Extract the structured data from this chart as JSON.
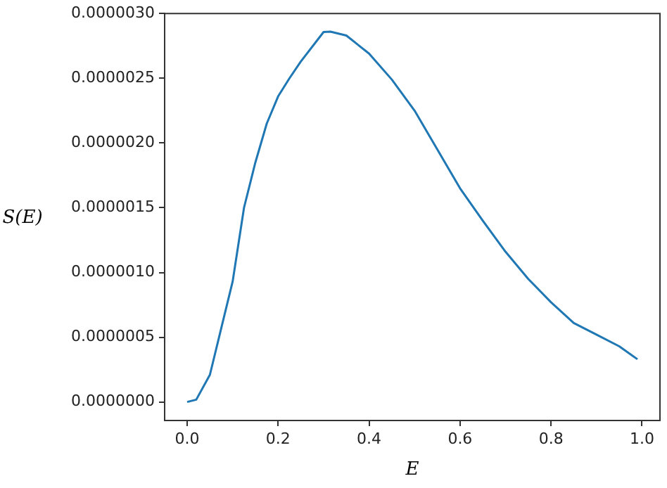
{
  "chart_data": {
    "type": "line",
    "xlabel": "E",
    "ylabel": "S(E)",
    "x": [
      0,
      0.02,
      0.05,
      0.075,
      0.1,
      0.125,
      0.15,
      0.175,
      0.2,
      0.225,
      0.25,
      0.3,
      0.315,
      0.35,
      0.4,
      0.45,
      0.5,
      0.55,
      0.6,
      0.65,
      0.7,
      0.75,
      0.8,
      0.85,
      0.9,
      0.95,
      0.99
    ],
    "series": [
      {
        "color": "#1f77b4",
        "values": [
          0,
          1.8e-08,
          2.1e-07,
          5.7e-07,
          9.3e-07,
          1.5e-06,
          1.85e-06,
          2.15e-06,
          2.36e-06,
          2.5e-06,
          2.63e-06,
          2.857e-06,
          2.86e-06,
          2.83e-06,
          2.69e-06,
          2.49e-06,
          2.25e-06,
          1.95e-06,
          1.65e-06,
          1.4e-06,
          1.16e-06,
          9.5e-07,
          7.7e-07,
          6.1e-07,
          5.2e-07,
          4.3e-07,
          3.3e-07
        ]
      }
    ],
    "xlim": [
      -0.0495,
      1.0395
    ],
    "xticks": [
      {
        "value": 0,
        "label": "0.0"
      },
      {
        "value": 0.2,
        "label": "0.2"
      },
      {
        "value": 0.4,
        "label": "0.4"
      },
      {
        "value": 0.6,
        "label": "0.6"
      },
      {
        "value": 0.8,
        "label": "0.8"
      },
      {
        "value": 1,
        "label": "1.0"
      }
    ],
    "ylim": [
      -1.43e-07,
      3e-06
    ],
    "yticks": [
      {
        "value": 0,
        "label": "0.0000000"
      },
      {
        "value": 5e-07,
        "label": "0.0000005"
      },
      {
        "value": 1e-06,
        "label": "0.0000010"
      },
      {
        "value": 1.5e-06,
        "label": "0.0000015"
      },
      {
        "value": 2e-06,
        "label": "0.0000020"
      },
      {
        "value": 2.5e-06,
        "label": "0.0000025"
      },
      {
        "value": 3e-06,
        "label": "0.0000030"
      }
    ],
    "grid": false,
    "legend": false,
    "marker": "none",
    "line_style": "solid"
  }
}
